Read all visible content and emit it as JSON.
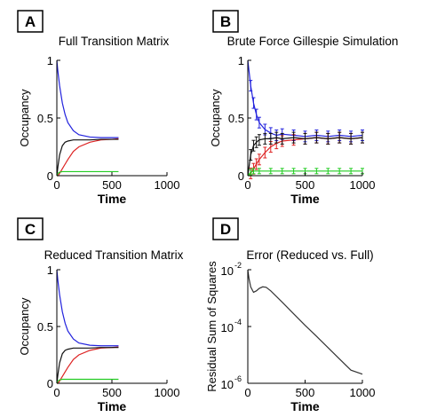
{
  "chart_data": [
    {
      "panel": "A",
      "type": "line",
      "title": "Full Transition Matrix",
      "xlabel": "Time",
      "ylabel": "Occupancy",
      "xlim": [
        0,
        1000
      ],
      "ylim": [
        0,
        1
      ],
      "xticks": [
        "0",
        "500",
        "1000"
      ],
      "yticks": [
        "0",
        "0.5",
        "1"
      ],
      "xtick_values": [
        0,
        500,
        1000
      ],
      "ytick_values": [
        0,
        0.5,
        1
      ],
      "x_end": 560,
      "series": [
        {
          "color": "#2222dd",
          "x": [
            0,
            10,
            25,
            50,
            75,
            100,
            150,
            200,
            300,
            400,
            500,
            560
          ],
          "y": [
            1.0,
            0.9,
            0.78,
            0.63,
            0.53,
            0.46,
            0.39,
            0.355,
            0.335,
            0.33,
            0.33,
            0.33
          ]
        },
        {
          "color": "#dd2222",
          "x": [
            0,
            10,
            25,
            50,
            75,
            100,
            150,
            200,
            300,
            400,
            500,
            560
          ],
          "y": [
            0.0,
            0.0,
            0.02,
            0.06,
            0.1,
            0.14,
            0.21,
            0.25,
            0.29,
            0.31,
            0.315,
            0.32
          ]
        },
        {
          "color": "#111111",
          "x": [
            0,
            10,
            25,
            50,
            75,
            100,
            150,
            200,
            300,
            400,
            500,
            560
          ],
          "y": [
            0.0,
            0.08,
            0.18,
            0.26,
            0.29,
            0.3,
            0.31,
            0.31,
            0.31,
            0.315,
            0.315,
            0.315
          ]
        },
        {
          "color": "#22cc22",
          "x": [
            0,
            10,
            25,
            50,
            100,
            200,
            300,
            400,
            500,
            560
          ],
          "y": [
            0.0,
            0.02,
            0.03,
            0.035,
            0.035,
            0.035,
            0.035,
            0.035,
            0.035,
            0.035
          ]
        }
      ]
    },
    {
      "panel": "B",
      "type": "line",
      "title": "Brute Force Gillespie Simulation",
      "xlabel": "Time",
      "ylabel": "Occupancy",
      "xlim": [
        0,
        1000
      ],
      "ylim": [
        0,
        1
      ],
      "xticks": [
        "0",
        "500",
        "1000"
      ],
      "yticks": [
        "0",
        "0.5",
        "1"
      ],
      "xtick_values": [
        0,
        500,
        1000
      ],
      "ytick_values": [
        0,
        0.5,
        1
      ],
      "error_bars": true,
      "series": [
        {
          "color": "#2222dd",
          "x": [
            0,
            25,
            50,
            75,
            100,
            150,
            200,
            250,
            300,
            400,
            500,
            600,
            700,
            800,
            900,
            1000
          ],
          "y": [
            1.0,
            0.78,
            0.63,
            0.53,
            0.46,
            0.4,
            0.37,
            0.35,
            0.36,
            0.35,
            0.34,
            0.35,
            0.34,
            0.35,
            0.34,
            0.35
          ]
        },
        {
          "color": "#dd2222",
          "x": [
            0,
            25,
            50,
            75,
            100,
            150,
            200,
            250,
            300,
            400,
            500,
            600,
            700,
            800,
            900,
            1000
          ],
          "y": [
            0.0,
            0.02,
            0.06,
            0.1,
            0.14,
            0.2,
            0.25,
            0.28,
            0.3,
            0.31,
            0.32,
            0.33,
            0.32,
            0.33,
            0.32,
            0.33
          ]
        },
        {
          "color": "#111111",
          "x": [
            0,
            25,
            50,
            75,
            100,
            150,
            200,
            250,
            300,
            400,
            500,
            600,
            700,
            800,
            900,
            1000
          ],
          "y": [
            0.0,
            0.18,
            0.26,
            0.29,
            0.31,
            0.32,
            0.32,
            0.33,
            0.32,
            0.33,
            0.32,
            0.33,
            0.32,
            0.33,
            0.32,
            0.33
          ]
        },
        {
          "color": "#22cc22",
          "x": [
            0,
            25,
            50,
            100,
            200,
            300,
            400,
            500,
            600,
            700,
            800,
            900,
            1000
          ],
          "y": [
            0.0,
            0.03,
            0.04,
            0.04,
            0.04,
            0.04,
            0.04,
            0.04,
            0.04,
            0.04,
            0.04,
            0.04,
            0.04
          ]
        }
      ]
    },
    {
      "panel": "C",
      "type": "line",
      "title": "Reduced Transition Matrix",
      "xlabel": "Time",
      "ylabel": "Occupancy",
      "xlim": [
        0,
        1000
      ],
      "ylim": [
        0,
        1
      ],
      "xticks": [
        "0",
        "500",
        "1000"
      ],
      "yticks": [
        "0",
        "0.5",
        "1"
      ],
      "xtick_values": [
        0,
        500,
        1000
      ],
      "ytick_values": [
        0,
        0.5,
        1
      ],
      "series": [
        {
          "color": "#2222dd",
          "x": [
            0,
            10,
            25,
            50,
            75,
            100,
            150,
            200,
            300,
            400,
            500,
            560
          ],
          "y": [
            1.0,
            0.9,
            0.78,
            0.63,
            0.53,
            0.46,
            0.39,
            0.355,
            0.335,
            0.33,
            0.33,
            0.33
          ]
        },
        {
          "color": "#dd2222",
          "x": [
            0,
            10,
            25,
            50,
            75,
            100,
            150,
            200,
            300,
            400,
            500,
            560
          ],
          "y": [
            0.0,
            0.0,
            0.02,
            0.06,
            0.1,
            0.14,
            0.21,
            0.25,
            0.29,
            0.31,
            0.315,
            0.32
          ]
        },
        {
          "color": "#111111",
          "x": [
            0,
            10,
            25,
            50,
            75,
            100,
            150,
            200,
            300,
            400,
            500,
            560
          ],
          "y": [
            0.0,
            0.08,
            0.18,
            0.26,
            0.29,
            0.3,
            0.31,
            0.31,
            0.31,
            0.315,
            0.315,
            0.315
          ]
        },
        {
          "color": "#22cc22",
          "x": [
            0,
            10,
            25,
            50,
            100,
            200,
            300,
            400,
            500,
            560
          ],
          "y": [
            0.0,
            0.02,
            0.03,
            0.035,
            0.035,
            0.035,
            0.035,
            0.035,
            0.035,
            0.035
          ]
        }
      ]
    },
    {
      "panel": "D",
      "type": "line",
      "title": "Error (Reduced vs. Full)",
      "xlabel": "Time",
      "ylabel": "Residual Sum of Squares",
      "xlim": [
        0,
        1000
      ],
      "ylim": [
        1e-06,
        0.01
      ],
      "yscale": "log",
      "xticks": [
        "0",
        "500",
        "1000"
      ],
      "xtick_values": [
        0,
        500,
        1000
      ],
      "ytick_values": [
        1e-06,
        0.0001,
        0.01
      ],
      "ytick_base": "10",
      "ytick_exponents": [
        "-6",
        "-4",
        "-2"
      ],
      "series": [
        {
          "color": "#333333",
          "x": [
            0,
            10,
            25,
            50,
            75,
            100,
            130,
            160,
            200,
            300,
            400,
            500,
            600,
            700,
            800,
            900,
            1000
          ],
          "y": [
            0.0095,
            0.005,
            0.0025,
            0.0016,
            0.0018,
            0.0022,
            0.0025,
            0.0024,
            0.0018,
            0.00072,
            0.00028,
            0.00011,
            4.5e-05,
            1.8e-05,
            7.2e-06,
            2.9e-06,
            2.1e-06
          ]
        }
      ]
    }
  ]
}
